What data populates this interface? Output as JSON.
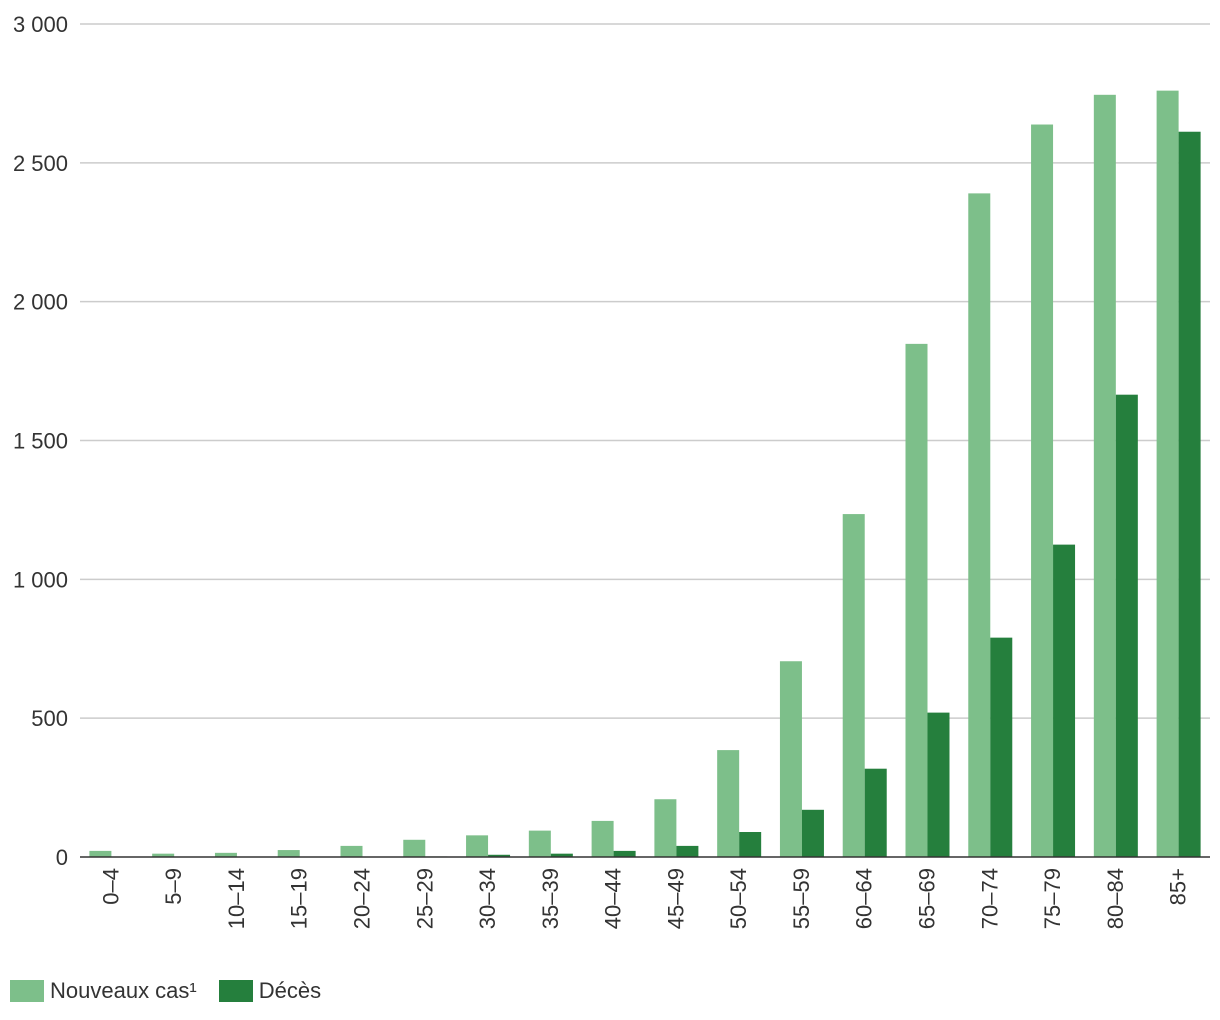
{
  "chart_data": {
    "type": "bar",
    "title": "",
    "xlabel": "",
    "ylabel": "",
    "ylim": [
      0,
      3000
    ],
    "yticks": [
      0,
      500,
      1000,
      1500,
      2000,
      2500,
      3000
    ],
    "ytick_labels": [
      "0",
      "500",
      "1 000",
      "1 500",
      "2 000",
      "2 500",
      "3 000"
    ],
    "categories": [
      "0–4",
      "5–9",
      "10–14",
      "15–19",
      "20–24",
      "25–29",
      "30–34",
      "35–39",
      "40–44",
      "45–49",
      "50–54",
      "55–59",
      "60–64",
      "65–69",
      "70–74",
      "75–79",
      "80–84",
      "85+"
    ],
    "series": [
      {
        "name": "Nouveaux cas¹",
        "color": "#7dbf8a",
        "values": [
          22,
          12,
          15,
          25,
          40,
          62,
          78,
          95,
          130,
          208,
          385,
          705,
          1235,
          1848,
          2390,
          2638,
          2745,
          2760
        ]
      },
      {
        "name": "Décès",
        "color": "#257f3d",
        "values": [
          0,
          0,
          0,
          0,
          0,
          2,
          8,
          12,
          22,
          40,
          90,
          170,
          318,
          520,
          790,
          1125,
          1665,
          2612
        ]
      }
    ],
    "grid": true,
    "legend_position": "bottom-left"
  }
}
